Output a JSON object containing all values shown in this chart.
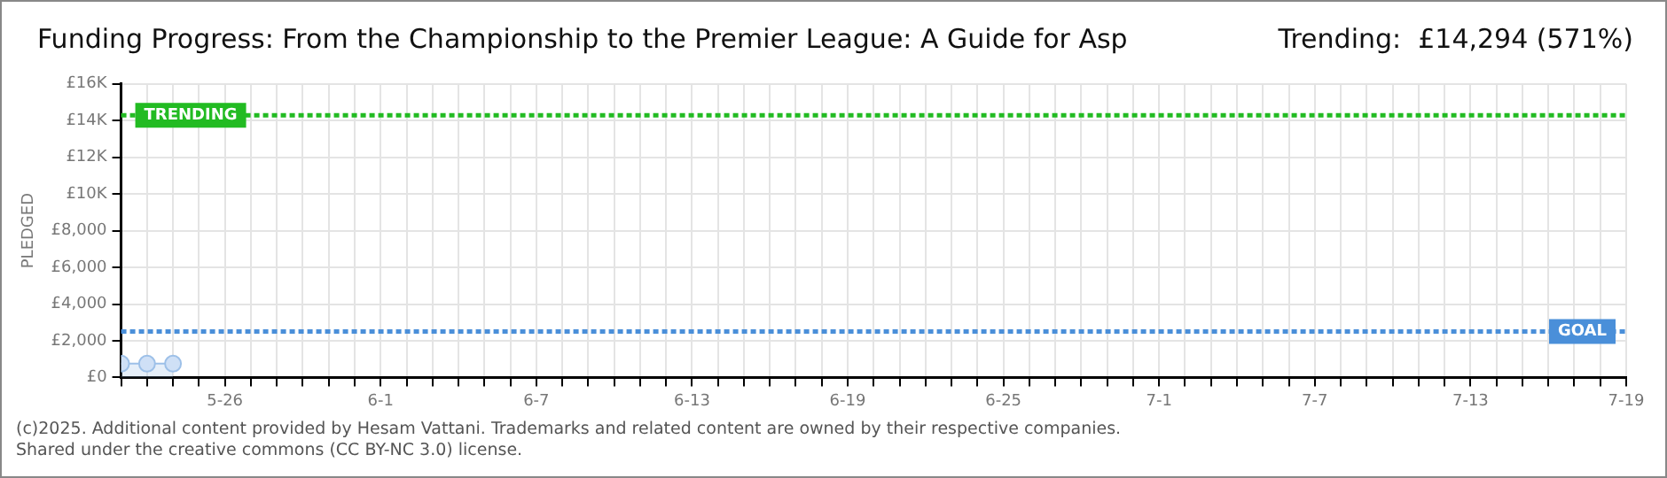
{
  "chart_data": {
    "type": "area",
    "title": "Funding Progress: From the Championship to the Premier League: A Guide for Asp",
    "subtitle": "Trending:  £14,294 (571%)",
    "ylabel": "PLEDGED",
    "annotations": [
      "(c)2025. Additional content provided by Hesam Vattani. Trademarks and related content are owned by their respective companies.",
      "Shared under the creative commons (CC BY-NC 3.0) license."
    ],
    "x": [
      "--05-22",
      "--05-23",
      "--05-24"
    ],
    "series": [
      {
        "color": "#9dc0e8",
        "values": [
          750,
          750,
          750
        ]
      }
    ],
    "marker": "circle",
    "grid": true,
    "legend": false,
    "xlim": [
      "--05-22",
      "--07-19"
    ],
    "xticks": [
      {
        "value": "--05-22",
        "label": null
      },
      {
        "value": "--05-23",
        "label": null
      },
      {
        "value": "--05-24",
        "label": null
      },
      {
        "value": "--05-25",
        "label": null
      },
      {
        "value": "--05-26",
        "label": "5-26"
      },
      {
        "value": "--05-27",
        "label": null
      },
      {
        "value": "--05-28",
        "label": null
      },
      {
        "value": "--05-29",
        "label": null
      },
      {
        "value": "--05-30",
        "label": null
      },
      {
        "value": "--05-31",
        "label": null
      },
      {
        "value": "--06-01",
        "label": "6-1"
      },
      {
        "value": "--06-02",
        "label": null
      },
      {
        "value": "--06-03",
        "label": null
      },
      {
        "value": "--06-04",
        "label": null
      },
      {
        "value": "--06-05",
        "label": null
      },
      {
        "value": "--06-06",
        "label": null
      },
      {
        "value": "--06-07",
        "label": "6-7"
      },
      {
        "value": "--06-08",
        "label": null
      },
      {
        "value": "--06-09",
        "label": null
      },
      {
        "value": "--06-10",
        "label": null
      },
      {
        "value": "--06-11",
        "label": null
      },
      {
        "value": "--06-12",
        "label": null
      },
      {
        "value": "--06-13",
        "label": "6-13"
      },
      {
        "value": "--06-14",
        "label": null
      },
      {
        "value": "--06-15",
        "label": null
      },
      {
        "value": "--06-16",
        "label": null
      },
      {
        "value": "--06-17",
        "label": null
      },
      {
        "value": "--06-18",
        "label": null
      },
      {
        "value": "--06-19",
        "label": "6-19"
      },
      {
        "value": "--06-20",
        "label": null
      },
      {
        "value": "--06-21",
        "label": null
      },
      {
        "value": "--06-22",
        "label": null
      },
      {
        "value": "--06-23",
        "label": null
      },
      {
        "value": "--06-24",
        "label": null
      },
      {
        "value": "--06-25",
        "label": "6-25"
      },
      {
        "value": "--06-26",
        "label": null
      },
      {
        "value": "--06-27",
        "label": null
      },
      {
        "value": "--06-28",
        "label": null
      },
      {
        "value": "--06-29",
        "label": null
      },
      {
        "value": "--06-30",
        "label": null
      },
      {
        "value": "--07-01",
        "label": "7-1"
      },
      {
        "value": "--07-02",
        "label": null
      },
      {
        "value": "--07-03",
        "label": null
      },
      {
        "value": "--07-04",
        "label": null
      },
      {
        "value": "--07-05",
        "label": null
      },
      {
        "value": "--07-06",
        "label": null
      },
      {
        "value": "--07-07",
        "label": "7-7"
      },
      {
        "value": "--07-08",
        "label": null
      },
      {
        "value": "--07-09",
        "label": null
      },
      {
        "value": "--07-10",
        "label": null
      },
      {
        "value": "--07-11",
        "label": null
      },
      {
        "value": "--07-12",
        "label": null
      },
      {
        "value": "--07-13",
        "label": "7-13"
      },
      {
        "value": "--07-14",
        "label": null
      },
      {
        "value": "--07-15",
        "label": null
      },
      {
        "value": "--07-16",
        "label": null
      },
      {
        "value": "--07-17",
        "label": null
      },
      {
        "value": "--07-18",
        "label": null
      },
      {
        "value": "--07-19",
        "label": "7-19"
      }
    ],
    "ylim": [
      0,
      16000
    ],
    "yticks": [
      {
        "value": 0,
        "label": "£0"
      },
      {
        "value": 2000,
        "label": "£2,000"
      },
      {
        "value": 4000,
        "label": "£4,000"
      },
      {
        "value": 6000,
        "label": "£6,000"
      },
      {
        "value": 8000,
        "label": "£8,000"
      },
      {
        "value": 10000,
        "label": "£10K"
      },
      {
        "value": 12000,
        "label": "£12K"
      },
      {
        "value": 14000,
        "label": "£14K"
      },
      {
        "value": 16000,
        "label": "£16K"
      }
    ],
    "ref_lines": [
      {
        "axis": "y",
        "value": 14294,
        "label": "TRENDING",
        "color": "#22bb22",
        "line_style": "dotted"
      },
      {
        "axis": "y",
        "value": 2500,
        "label": "GOAL",
        "color": "#4a8fd9",
        "line_style": "dotted"
      }
    ]
  }
}
